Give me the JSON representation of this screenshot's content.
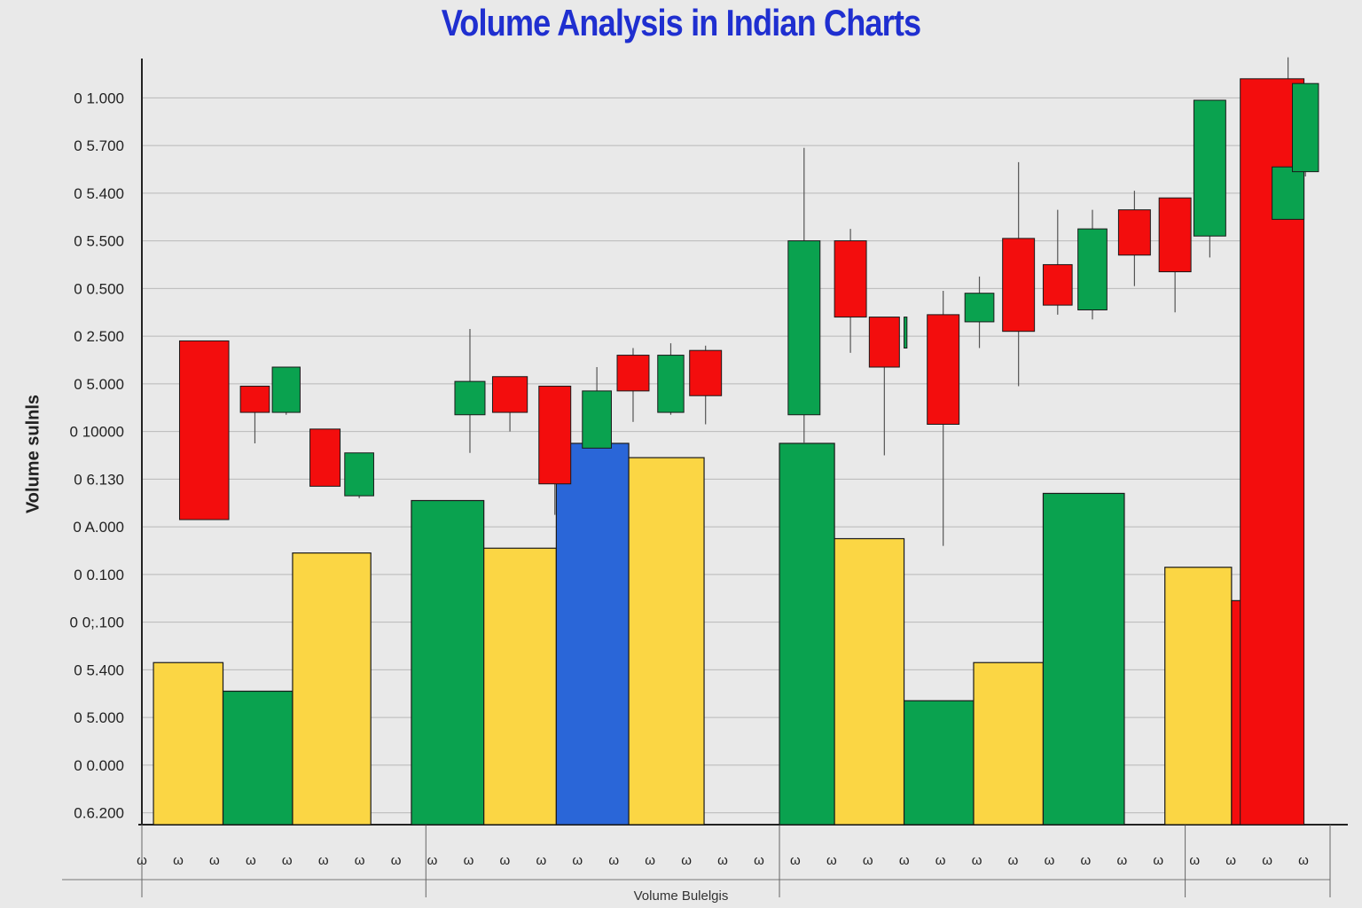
{
  "chart_data": {
    "type": "bar",
    "title": "Volume Analysis in Indian Charts",
    "xlabel": "Volume Bulelgis",
    "ylabel": "Volume sulnls",
    "y_tick_labels": [
      "0.6.200",
      "0 0.000",
      "0 5.000",
      "0 5.400",
      "0 0;.100",
      "0 0.100",
      "0 A.000",
      "0 6.130",
      "0 10000",
      "0 5.000",
      "0 2.500",
      "0 0.500",
      "0 5.500",
      "0 5.400",
      "0 5.700",
      "0 1.000"
    ],
    "x_tick_labels": [
      "ω",
      "ω",
      "ω",
      "ω",
      "ω",
      "ω",
      "ω",
      "ω",
      "ω",
      "ω",
      "ω",
      "ω",
      "ω",
      "ω",
      "ω",
      "ω",
      "ω",
      "ω",
      "ω",
      "ω",
      "ω",
      "ω",
      "ω",
      "ω",
      "ω",
      "ω",
      "ω",
      "ω",
      "ω",
      "ω",
      "ω",
      "ω",
      "ω"
    ],
    "ylim": [
      0,
      16
    ],
    "grid": true,
    "colors": {
      "red": "#f30d0d",
      "green": "#0aa24f",
      "yellow": "#fbd644",
      "blue": "#2a66d8"
    },
    "volume_bars": [
      {
        "x0": 0.2,
        "x1": 1.4,
        "value": 3.4,
        "color": "yellow"
      },
      {
        "x0": 1.4,
        "x1": 2.6,
        "value": 2.8,
        "color": "green"
      },
      {
        "x0": 2.6,
        "x1": 3.95,
        "value": 5.7,
        "color": "yellow"
      },
      {
        "x0": 4.65,
        "x1": 5.9,
        "value": 6.8,
        "color": "green"
      },
      {
        "x0": 5.9,
        "x1": 7.15,
        "value": 5.8,
        "color": "yellow"
      },
      {
        "x0": 7.15,
        "x1": 8.4,
        "value": 8.0,
        "color": "blue"
      },
      {
        "x0": 8.4,
        "x1": 9.7,
        "value": 7.7,
        "color": "yellow"
      },
      {
        "x0": 11.0,
        "x1": 11.95,
        "value": 8.0,
        "color": "green"
      },
      {
        "x0": 11.95,
        "x1": 13.15,
        "value": 6.0,
        "color": "yellow"
      },
      {
        "x0": 13.15,
        "x1": 14.35,
        "value": 2.6,
        "color": "green"
      },
      {
        "x0": 14.35,
        "x1": 15.55,
        "value": 3.4,
        "color": "yellow"
      },
      {
        "x0": 15.55,
        "x1": 16.95,
        "value": 6.95,
        "color": "green"
      },
      {
        "x0": 17.65,
        "x1": 18.8,
        "value": 5.4,
        "color": "yellow"
      },
      {
        "x0": 18.8,
        "x1": 19.1,
        "value": 4.7,
        "color": "red"
      }
    ],
    "candles": [
      {
        "x": 0.65,
        "w": 0.85,
        "open": 6.4,
        "close": 10.15,
        "high": 10.15,
        "low": 6.4,
        "color": "red"
      },
      {
        "x": 1.7,
        "w": 0.5,
        "open": 9.2,
        "close": 8.65,
        "high": 9.2,
        "low": 8.0,
        "color": "red"
      },
      {
        "x": 2.25,
        "w": 0.48,
        "open": 8.65,
        "close": 9.6,
        "high": 9.6,
        "low": 8.6,
        "color": "green"
      },
      {
        "x": 2.9,
        "w": 0.52,
        "open": 8.3,
        "close": 7.1,
        "high": 8.3,
        "low": 7.1,
        "color": "red"
      },
      {
        "x": 3.5,
        "w": 0.5,
        "open": 6.9,
        "close": 7.8,
        "high": 7.8,
        "low": 6.85,
        "color": "green"
      },
      {
        "x": 5.4,
        "w": 0.52,
        "open": 8.6,
        "close": 9.3,
        "high": 10.4,
        "low": 7.8,
        "color": "green"
      },
      {
        "x": 6.05,
        "w": 0.6,
        "open": 9.4,
        "close": 8.65,
        "high": 9.4,
        "low": 8.25,
        "color": "red"
      },
      {
        "x": 6.85,
        "w": 0.55,
        "open": 9.2,
        "close": 7.15,
        "high": 9.2,
        "low": 6.5,
        "color": "red"
      },
      {
        "x": 7.6,
        "w": 0.5,
        "open": 7.9,
        "close": 9.1,
        "high": 9.6,
        "low": 7.9,
        "color": "green"
      },
      {
        "x": 8.2,
        "w": 0.55,
        "open": 9.85,
        "close": 9.1,
        "high": 10.0,
        "low": 8.45,
        "color": "red"
      },
      {
        "x": 8.9,
        "w": 0.45,
        "open": 8.65,
        "close": 9.85,
        "high": 10.1,
        "low": 8.6,
        "color": "green"
      },
      {
        "x": 9.45,
        "w": 0.55,
        "open": 9.95,
        "close": 9.0,
        "high": 10.05,
        "low": 8.4,
        "color": "red"
      },
      {
        "x": 11.15,
        "w": 0.55,
        "open": 8.6,
        "close": 12.25,
        "high": 14.2,
        "low": 8.0,
        "color": "green"
      },
      {
        "x": 11.95,
        "w": 0.55,
        "open": 12.25,
        "close": 10.65,
        "high": 12.5,
        "low": 9.9,
        "color": "red"
      },
      {
        "x": 12.55,
        "w": 0.52,
        "open": 10.65,
        "close": 9.6,
        "high": 10.65,
        "low": 7.75,
        "color": "red"
      },
      {
        "x": 13.15,
        "w": 0.05,
        "open": 10.0,
        "close": 10.65,
        "high": 10.65,
        "low": 10.0,
        "color": "green"
      },
      {
        "x": 13.55,
        "w": 0.55,
        "open": 10.7,
        "close": 8.4,
        "high": 11.2,
        "low": 5.85,
        "color": "red"
      },
      {
        "x": 14.2,
        "w": 0.5,
        "open": 10.55,
        "close": 11.15,
        "high": 11.5,
        "low": 10.0,
        "color": "green"
      },
      {
        "x": 14.85,
        "w": 0.55,
        "open": 12.3,
        "close": 10.35,
        "high": 13.9,
        "low": 9.2,
        "color": "red"
      },
      {
        "x": 15.55,
        "w": 0.5,
        "open": 11.75,
        "close": 10.9,
        "high": 12.9,
        "low": 10.7,
        "color": "red"
      },
      {
        "x": 16.15,
        "w": 0.5,
        "open": 10.8,
        "close": 12.5,
        "high": 12.9,
        "low": 10.6,
        "color": "green"
      },
      {
        "x": 16.85,
        "w": 0.55,
        "open": 12.9,
        "close": 11.95,
        "high": 13.3,
        "low": 11.3,
        "color": "red"
      },
      {
        "x": 17.55,
        "w": 0.55,
        "open": 13.15,
        "close": 11.6,
        "high": 13.15,
        "low": 10.75,
        "color": "red"
      },
      {
        "x": 18.15,
        "w": 0.55,
        "open": 12.35,
        "close": 15.2,
        "high": 15.2,
        "low": 11.9,
        "color": "green"
      },
      {
        "x": 18.95,
        "w": 1.1,
        "open": 15.65,
        "close": 0.0,
        "high": 15.65,
        "low": 0.0,
        "color": "red"
      },
      {
        "x": 19.5,
        "w": 0.55,
        "open": 12.7,
        "close": 13.8,
        "high": 16.1,
        "low": 10.8,
        "color": "green"
      },
      {
        "x": 19.85,
        "w": 0.45,
        "open": 13.7,
        "close": 15.55,
        "high": 15.55,
        "low": 13.6,
        "color": "green"
      }
    ],
    "separators": [
      0,
      4.9,
      11.0,
      18.0,
      20.5
    ],
    "xlim": [
      0,
      20.5
    ]
  }
}
